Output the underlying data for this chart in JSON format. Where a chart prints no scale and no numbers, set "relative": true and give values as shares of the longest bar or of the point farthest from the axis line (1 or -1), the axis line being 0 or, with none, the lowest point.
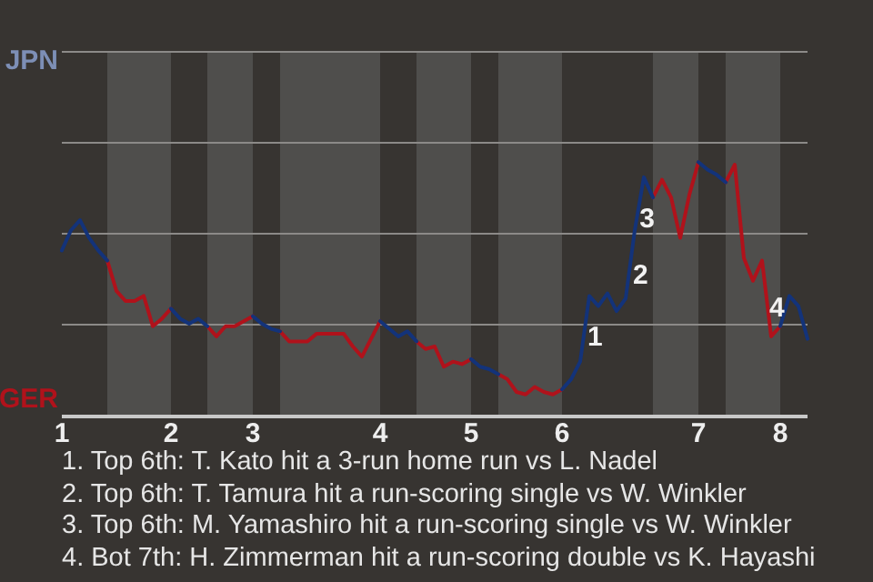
{
  "chart_data": {
    "type": "line",
    "relative": true,
    "categories": [
      "1",
      null,
      null,
      null,
      null,
      null,
      null,
      null,
      null,
      null,
      null,
      null,
      "2",
      null,
      null,
      null,
      null,
      null,
      null,
      null,
      null,
      "3",
      null,
      null,
      null,
      null,
      null,
      null,
      null,
      null,
      null,
      null,
      null,
      null,
      null,
      "4",
      null,
      null,
      null,
      null,
      null,
      null,
      null,
      null,
      null,
      "5",
      null,
      null,
      null,
      null,
      null,
      null,
      null,
      null,
      null,
      "6",
      null,
      null,
      null,
      null,
      null,
      null,
      null,
      null,
      null,
      null,
      null,
      null,
      null,
      null,
      "7",
      null,
      null,
      null,
      null,
      null,
      null,
      null,
      null,
      "8",
      null,
      null,
      null
    ],
    "series": [
      {
        "color": "#13337a",
        "values": [
          0.65,
          0.73,
          0.77,
          0.7,
          0.65,
          0.61,
          null,
          null,
          null,
          null,
          null,
          null,
          0.42,
          0.38,
          0.36,
          0.38,
          0.35,
          null,
          null,
          null,
          null,
          0.39,
          0.36,
          0.34,
          0.33,
          null,
          null,
          null,
          null,
          null,
          null,
          null,
          null,
          null,
          null,
          0.37,
          0.34,
          0.31,
          0.33,
          0.29,
          null,
          null,
          null,
          null,
          null,
          0.22,
          0.19,
          0.18,
          0.16,
          null,
          null,
          null,
          null,
          null,
          null,
          0.1,
          0.14,
          0.21,
          0.47,
          0.43,
          0.48,
          0.41,
          0.46,
          0.73,
          0.94,
          0.86,
          null,
          null,
          null,
          null,
          1,
          0.97,
          0.95,
          0.92,
          null,
          null,
          null,
          null,
          null,
          0.35,
          0.47,
          0.43,
          0.3
        ]
      },
      {
        "color": "#b0121b",
        "values": [
          null,
          null,
          null,
          null,
          null,
          0.61,
          0.49,
          0.45,
          0.45,
          0.47,
          0.35,
          0.38,
          0.42,
          null,
          null,
          null,
          0.35,
          0.31,
          0.35,
          0.35,
          0.37,
          0.39,
          null,
          null,
          0.33,
          0.29,
          0.29,
          0.29,
          0.32,
          0.32,
          0.32,
          0.32,
          0.27,
          0.23,
          0.3,
          0.37,
          null,
          null,
          null,
          0.29,
          0.26,
          0.27,
          0.19,
          0.21,
          0.2,
          0.22,
          null,
          null,
          0.16,
          0.14,
          0.09,
          0.08,
          0.11,
          0.09,
          0.08,
          0.1,
          null,
          null,
          null,
          null,
          null,
          null,
          null,
          null,
          null,
          0.86,
          0.93,
          0.86,
          0.7,
          0.87,
          1,
          null,
          null,
          0.92,
          0.99,
          0.62,
          0.53,
          0.61,
          0.31,
          0.35,
          null,
          null,
          null
        ]
      }
    ],
    "legend": false,
    "marker": "none",
    "line_style": "solid",
    "ref_lines": [
      {
        "axis": "y",
        "value": 0.36,
        "color": "#8c8a88"
      },
      {
        "axis": "y",
        "value": 0.72,
        "color": "#8c8a88"
      },
      {
        "axis": "y",
        "value": 1.08,
        "color": "#8c8a88"
      },
      {
        "axis": "y",
        "value": 1.44,
        "color": "#8c8a88"
      }
    ],
    "annotations": [
      "JPN",
      "GER",
      "1",
      "2",
      "3",
      "4",
      "1. Top 6th: T. Kato hit a 3-run home run vs L. Nadel",
      "2. Top 6th: T. Tamura hit a run-scoring single vs W. Winkler",
      "3. Top 6th: M. Yamashiro hit a run-scoring single vs W. Winkler",
      "4. Bot 7th: H. Zimmerman hit a run-scoring double vs K. Hayashi"
    ]
  }
}
